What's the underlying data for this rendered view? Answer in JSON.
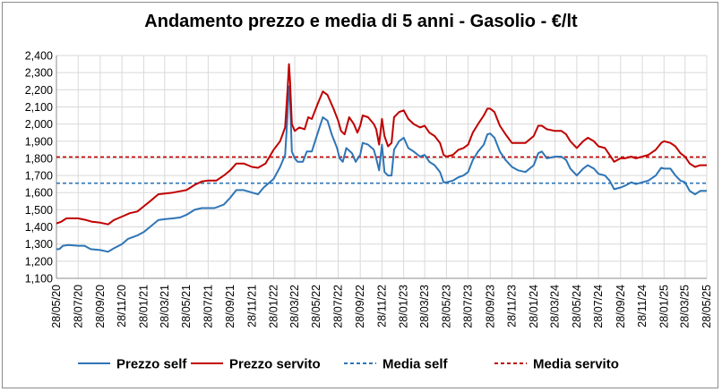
{
  "chart_data": {
    "type": "line",
    "title": "Andamento prezzo e media di 5 anni - Gasolio - €/lt",
    "xlabel": "",
    "ylabel": "",
    "ylim": [
      1.1,
      2.4
    ],
    "y_ticks": [
      1.1,
      1.2,
      1.3,
      1.4,
      1.5,
      1.6,
      1.7,
      1.8,
      1.9,
      2.0,
      2.1,
      2.2,
      2.3,
      2.4
    ],
    "y_tick_labels": [
      "1,100",
      "1,200",
      "1,300",
      "1,400",
      "1,500",
      "1,600",
      "1,700",
      "1,800",
      "1,900",
      "2,000",
      "2,100",
      "2,200",
      "2,300",
      "2,400"
    ],
    "x_range": [
      "2020-05-28",
      "2025-05-28"
    ],
    "x_ticks": [
      "2020-05-28",
      "2020-07-28",
      "2020-09-28",
      "2020-11-28",
      "2021-01-28",
      "2021-03-28",
      "2021-05-28",
      "2021-07-28",
      "2021-09-28",
      "2021-11-28",
      "2022-01-28",
      "2022-03-28",
      "2022-05-28",
      "2022-07-28",
      "2022-09-28",
      "2022-11-28",
      "2023-01-28",
      "2023-03-28",
      "2023-05-28",
      "2023-07-28",
      "2023-09-28",
      "2023-11-28",
      "2024-01-28",
      "2024-03-28",
      "2024-05-28",
      "2024-07-28",
      "2024-09-28",
      "2024-11-28",
      "2025-01-28",
      "2025-03-28",
      "2025-05-28"
    ],
    "x_tick_labels": [
      "28/05/20",
      "28/07/20",
      "28/09/20",
      "28/11/20",
      "28/01/21",
      "28/03/21",
      "28/05/21",
      "28/07/21",
      "28/09/21",
      "28/11/21",
      "28/01/22",
      "28/03/22",
      "28/05/22",
      "28/07/22",
      "28/09/22",
      "28/11/22",
      "28/01/23",
      "28/03/23",
      "28/05/23",
      "28/07/23",
      "28/09/23",
      "28/11/23",
      "28/01/24",
      "28/03/24",
      "28/05/24",
      "28/07/24",
      "28/09/24",
      "28/11/24",
      "28/01/25",
      "28/03/25",
      "28/05/25"
    ],
    "grid": true,
    "legend_position": "bottom",
    "series": [
      {
        "name": "Prezzo self",
        "color": "#2e75b6",
        "style": "solid",
        "points": [
          [
            "2020-05-28",
            1.27
          ],
          [
            "2020-06-05",
            1.27
          ],
          [
            "2020-06-15",
            1.29
          ],
          [
            "2020-07-01",
            1.295
          ],
          [
            "2020-07-28",
            1.29
          ],
          [
            "2020-08-15",
            1.29
          ],
          [
            "2020-09-01",
            1.27
          ],
          [
            "2020-09-28",
            1.265
          ],
          [
            "2020-10-20",
            1.255
          ],
          [
            "2020-11-05",
            1.275
          ],
          [
            "2020-11-28",
            1.3
          ],
          [
            "2020-12-15",
            1.33
          ],
          [
            "2021-01-10",
            1.35
          ],
          [
            "2021-01-28",
            1.37
          ],
          [
            "2021-02-15",
            1.4
          ],
          [
            "2021-03-10",
            1.44
          ],
          [
            "2021-03-28",
            1.445
          ],
          [
            "2021-04-20",
            1.45
          ],
          [
            "2021-05-10",
            1.455
          ],
          [
            "2021-05-28",
            1.47
          ],
          [
            "2021-06-20",
            1.5
          ],
          [
            "2021-07-10",
            1.51
          ],
          [
            "2021-07-28",
            1.51
          ],
          [
            "2021-08-15",
            1.51
          ],
          [
            "2021-09-10",
            1.53
          ],
          [
            "2021-09-28",
            1.57
          ],
          [
            "2021-10-15",
            1.615
          ],
          [
            "2021-11-05",
            1.615
          ],
          [
            "2021-11-28",
            1.6
          ],
          [
            "2021-12-15",
            1.59
          ],
          [
            "2021-12-31",
            1.63
          ],
          [
            "2022-01-28",
            1.68
          ],
          [
            "2022-02-15",
            1.75
          ],
          [
            "2022-03-01",
            1.82
          ],
          [
            "2022-03-08",
            2.05
          ],
          [
            "2022-03-12",
            2.22
          ],
          [
            "2022-03-15",
            2.15
          ],
          [
            "2022-03-20",
            1.84
          ],
          [
            "2022-03-28",
            1.8
          ],
          [
            "2022-04-05",
            1.78
          ],
          [
            "2022-04-20",
            1.78
          ],
          [
            "2022-05-01",
            1.84
          ],
          [
            "2022-05-15",
            1.84
          ],
          [
            "2022-06-01",
            1.95
          ],
          [
            "2022-06-15",
            2.04
          ],
          [
            "2022-06-28",
            2.02
          ],
          [
            "2022-07-10",
            1.94
          ],
          [
            "2022-07-25",
            1.86
          ],
          [
            "2022-08-01",
            1.8
          ],
          [
            "2022-08-10",
            1.78
          ],
          [
            "2022-08-20",
            1.86
          ],
          [
            "2022-09-05",
            1.83
          ],
          [
            "2022-09-15",
            1.78
          ],
          [
            "2022-09-28",
            1.82
          ],
          [
            "2022-10-05",
            1.89
          ],
          [
            "2022-10-20",
            1.88
          ],
          [
            "2022-11-05",
            1.85
          ],
          [
            "2022-11-12",
            1.8
          ],
          [
            "2022-11-20",
            1.73
          ],
          [
            "2022-11-28",
            1.88
          ],
          [
            "2022-12-05",
            1.72
          ],
          [
            "2022-12-15",
            1.7
          ],
          [
            "2022-12-25",
            1.7
          ],
          [
            "2023-01-01",
            1.85
          ],
          [
            "2023-01-15",
            1.9
          ],
          [
            "2023-01-28",
            1.92
          ],
          [
            "2023-02-10",
            1.86
          ],
          [
            "2023-02-25",
            1.84
          ],
          [
            "2023-03-15",
            1.81
          ],
          [
            "2023-03-28",
            1.82
          ],
          [
            "2023-04-10",
            1.78
          ],
          [
            "2023-04-25",
            1.76
          ],
          [
            "2023-05-10",
            1.72
          ],
          [
            "2023-05-20",
            1.66
          ],
          [
            "2023-05-28",
            1.66
          ],
          [
            "2023-06-15",
            1.67
          ],
          [
            "2023-07-01",
            1.69
          ],
          [
            "2023-07-15",
            1.7
          ],
          [
            "2023-07-28",
            1.72
          ],
          [
            "2023-08-10",
            1.79
          ],
          [
            "2023-08-25",
            1.84
          ],
          [
            "2023-09-10",
            1.88
          ],
          [
            "2023-09-20",
            1.94
          ],
          [
            "2023-09-28",
            1.945
          ],
          [
            "2023-10-10",
            1.92
          ],
          [
            "2023-10-25",
            1.84
          ],
          [
            "2023-11-10",
            1.79
          ],
          [
            "2023-11-28",
            1.75
          ],
          [
            "2023-12-15",
            1.73
          ],
          [
            "2024-01-05",
            1.72
          ],
          [
            "2024-01-28",
            1.76
          ],
          [
            "2024-02-10",
            1.83
          ],
          [
            "2024-02-20",
            1.84
          ],
          [
            "2024-03-05",
            1.8
          ],
          [
            "2024-03-28",
            1.81
          ],
          [
            "2024-04-15",
            1.81
          ],
          [
            "2024-04-28",
            1.79
          ],
          [
            "2024-05-10",
            1.74
          ],
          [
            "2024-05-28",
            1.7
          ],
          [
            "2024-06-15",
            1.74
          ],
          [
            "2024-06-28",
            1.76
          ],
          [
            "2024-07-15",
            1.74
          ],
          [
            "2024-07-28",
            1.71
          ],
          [
            "2024-08-15",
            1.7
          ],
          [
            "2024-08-28",
            1.67
          ],
          [
            "2024-09-10",
            1.62
          ],
          [
            "2024-09-28",
            1.63
          ],
          [
            "2024-10-10",
            1.64
          ],
          [
            "2024-10-28",
            1.66
          ],
          [
            "2024-11-10",
            1.65
          ],
          [
            "2024-11-28",
            1.66
          ],
          [
            "2024-12-15",
            1.67
          ],
          [
            "2025-01-05",
            1.7
          ],
          [
            "2025-01-20",
            1.745
          ],
          [
            "2025-01-28",
            1.74
          ],
          [
            "2025-02-15",
            1.74
          ],
          [
            "2025-03-01",
            1.7
          ],
          [
            "2025-03-15",
            1.67
          ],
          [
            "2025-03-28",
            1.66
          ],
          [
            "2025-04-10",
            1.61
          ],
          [
            "2025-04-25",
            1.59
          ],
          [
            "2025-05-10",
            1.61
          ],
          [
            "2025-05-28",
            1.61
          ]
        ]
      },
      {
        "name": "Prezzo servito",
        "color": "#c00000",
        "style": "solid",
        "points": [
          [
            "2020-05-28",
            1.42
          ],
          [
            "2020-06-10",
            1.43
          ],
          [
            "2020-06-25",
            1.45
          ],
          [
            "2020-07-28",
            1.45
          ],
          [
            "2020-08-20",
            1.44
          ],
          [
            "2020-09-05",
            1.43
          ],
          [
            "2020-09-28",
            1.425
          ],
          [
            "2020-10-20",
            1.415
          ],
          [
            "2020-11-05",
            1.44
          ],
          [
            "2020-11-28",
            1.46
          ],
          [
            "2020-12-20",
            1.48
          ],
          [
            "2021-01-10",
            1.49
          ],
          [
            "2021-01-28",
            1.52
          ],
          [
            "2021-02-15",
            1.55
          ],
          [
            "2021-03-10",
            1.59
          ],
          [
            "2021-03-28",
            1.595
          ],
          [
            "2021-04-20",
            1.6
          ],
          [
            "2021-05-15",
            1.61
          ],
          [
            "2021-05-28",
            1.615
          ],
          [
            "2021-06-20",
            1.645
          ],
          [
            "2021-07-10",
            1.665
          ],
          [
            "2021-07-28",
            1.67
          ],
          [
            "2021-08-20",
            1.67
          ],
          [
            "2021-09-10",
            1.7
          ],
          [
            "2021-09-28",
            1.73
          ],
          [
            "2021-10-15",
            1.77
          ],
          [
            "2021-11-05",
            1.77
          ],
          [
            "2021-11-28",
            1.75
          ],
          [
            "2021-12-15",
            1.745
          ],
          [
            "2022-01-05",
            1.77
          ],
          [
            "2022-01-28",
            1.85
          ],
          [
            "2022-02-15",
            1.9
          ],
          [
            "2022-03-01",
            1.98
          ],
          [
            "2022-03-08",
            2.2
          ],
          [
            "2022-03-12",
            2.35
          ],
          [
            "2022-03-15",
            2.25
          ],
          [
            "2022-03-20",
            2.0
          ],
          [
            "2022-03-28",
            1.96
          ],
          [
            "2022-04-10",
            1.98
          ],
          [
            "2022-04-25",
            1.97
          ],
          [
            "2022-05-05",
            2.04
          ],
          [
            "2022-05-15",
            2.03
          ],
          [
            "2022-06-01",
            2.12
          ],
          [
            "2022-06-15",
            2.19
          ],
          [
            "2022-06-28",
            2.17
          ],
          [
            "2022-07-15",
            2.09
          ],
          [
            "2022-07-28",
            2.02
          ],
          [
            "2022-08-05",
            1.96
          ],
          [
            "2022-08-15",
            1.94
          ],
          [
            "2022-08-28",
            2.04
          ],
          [
            "2022-09-10",
            2.0
          ],
          [
            "2022-09-20",
            1.95
          ],
          [
            "2022-09-28",
            1.99
          ],
          [
            "2022-10-05",
            2.05
          ],
          [
            "2022-10-20",
            2.04
          ],
          [
            "2022-11-05",
            2.0
          ],
          [
            "2022-11-12",
            1.97
          ],
          [
            "2022-11-20",
            1.88
          ],
          [
            "2022-11-28",
            2.03
          ],
          [
            "2022-12-05",
            1.93
          ],
          [
            "2022-12-15",
            1.87
          ],
          [
            "2022-12-25",
            1.89
          ],
          [
            "2023-01-01",
            2.04
          ],
          [
            "2023-01-15",
            2.07
          ],
          [
            "2023-01-28",
            2.08
          ],
          [
            "2023-02-10",
            2.03
          ],
          [
            "2023-02-25",
            2.0
          ],
          [
            "2023-03-15",
            1.98
          ],
          [
            "2023-03-28",
            1.99
          ],
          [
            "2023-04-10",
            1.95
          ],
          [
            "2023-04-25",
            1.93
          ],
          [
            "2023-05-10",
            1.89
          ],
          [
            "2023-05-20",
            1.82
          ],
          [
            "2023-05-28",
            1.81
          ],
          [
            "2023-06-15",
            1.82
          ],
          [
            "2023-07-01",
            1.85
          ],
          [
            "2023-07-15",
            1.86
          ],
          [
            "2023-07-28",
            1.88
          ],
          [
            "2023-08-10",
            1.95
          ],
          [
            "2023-08-25",
            2.0
          ],
          [
            "2023-09-10",
            2.05
          ],
          [
            "2023-09-20",
            2.09
          ],
          [
            "2023-09-28",
            2.09
          ],
          [
            "2023-10-10",
            2.07
          ],
          [
            "2023-10-25",
            1.99
          ],
          [
            "2023-11-10",
            1.94
          ],
          [
            "2023-11-28",
            1.89
          ],
          [
            "2023-12-15",
            1.89
          ],
          [
            "2024-01-05",
            1.89
          ],
          [
            "2024-01-28",
            1.93
          ],
          [
            "2024-02-10",
            1.99
          ],
          [
            "2024-02-20",
            1.99
          ],
          [
            "2024-03-05",
            1.97
          ],
          [
            "2024-03-28",
            1.96
          ],
          [
            "2024-04-15",
            1.96
          ],
          [
            "2024-04-28",
            1.94
          ],
          [
            "2024-05-10",
            1.9
          ],
          [
            "2024-05-28",
            1.86
          ],
          [
            "2024-06-15",
            1.9
          ],
          [
            "2024-06-28",
            1.92
          ],
          [
            "2024-07-15",
            1.9
          ],
          [
            "2024-07-28",
            1.87
          ],
          [
            "2024-08-15",
            1.86
          ],
          [
            "2024-08-28",
            1.82
          ],
          [
            "2024-09-10",
            1.78
          ],
          [
            "2024-09-28",
            1.8
          ],
          [
            "2024-10-10",
            1.8
          ],
          [
            "2024-10-28",
            1.81
          ],
          [
            "2024-11-10",
            1.8
          ],
          [
            "2024-11-28",
            1.81
          ],
          [
            "2024-12-15",
            1.82
          ],
          [
            "2025-01-05",
            1.85
          ],
          [
            "2025-01-20",
            1.89
          ],
          [
            "2025-01-28",
            1.9
          ],
          [
            "2025-02-15",
            1.89
          ],
          [
            "2025-03-01",
            1.87
          ],
          [
            "2025-03-15",
            1.83
          ],
          [
            "2025-03-28",
            1.81
          ],
          [
            "2025-04-10",
            1.77
          ],
          [
            "2025-04-25",
            1.75
          ],
          [
            "2025-05-10",
            1.76
          ],
          [
            "2025-05-28",
            1.76
          ]
        ]
      },
      {
        "name": "Media self",
        "color": "#2e75b6",
        "style": "dashed",
        "points": [
          [
            "2020-05-28",
            1.655
          ],
          [
            "2025-05-28",
            1.655
          ]
        ]
      },
      {
        "name": "Media servito",
        "color": "#c00000",
        "style": "dashed",
        "points": [
          [
            "2020-05-28",
            1.808
          ],
          [
            "2025-05-28",
            1.808
          ]
        ]
      }
    ]
  }
}
